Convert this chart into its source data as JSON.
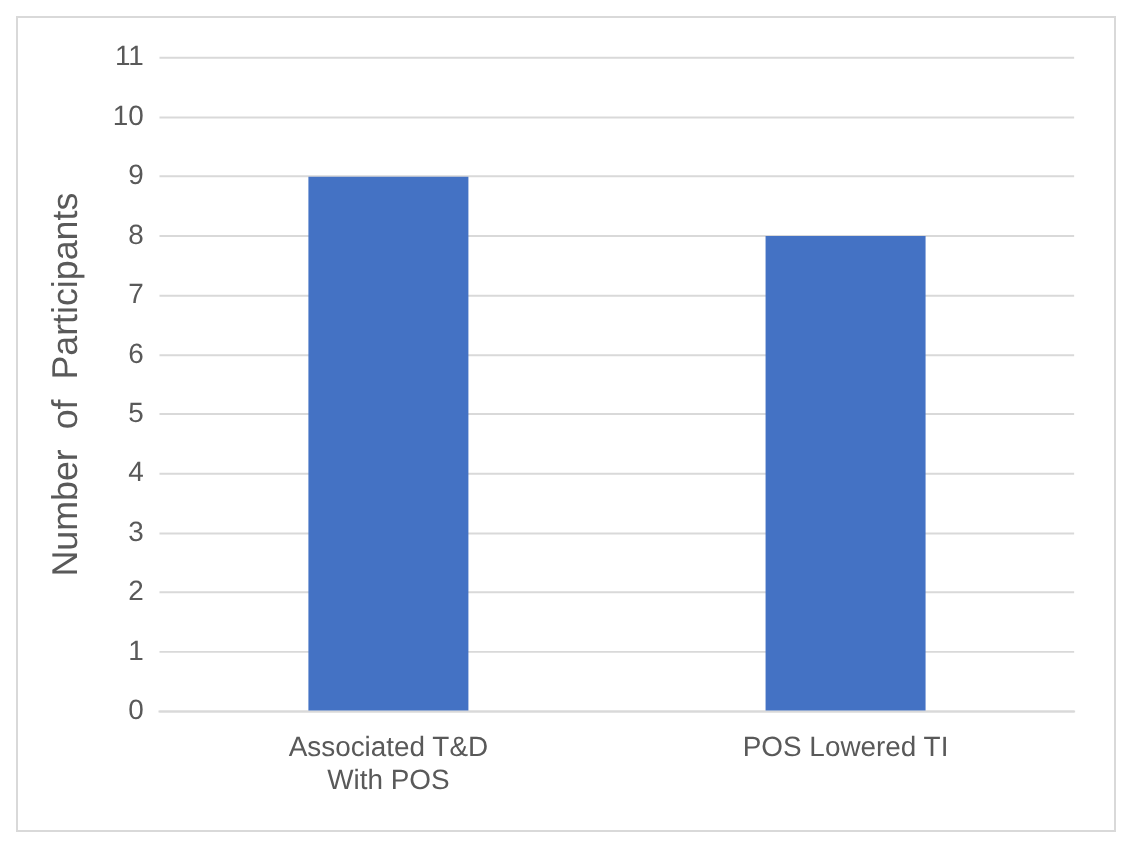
{
  "chart_data": {
    "type": "bar",
    "ylabel": "Number  of  Participants",
    "categories": [
      "Associated T&D With POS",
      "POS Lowered TI"
    ],
    "values": [
      9,
      8
    ],
    "color": "#4472c4",
    "ylim": [
      0,
      11
    ],
    "yticks": [
      0,
      1,
      2,
      3,
      4,
      5,
      6,
      7,
      8,
      9,
      10,
      11
    ],
    "grid": "y"
  }
}
